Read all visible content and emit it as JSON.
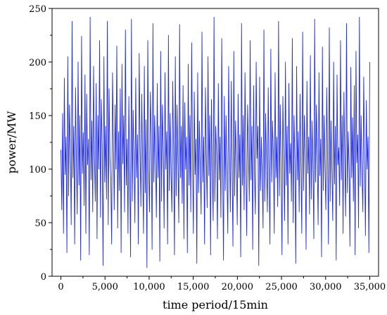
{
  "chart_data": {
    "type": "line",
    "title": "",
    "xlabel": "time period/15min",
    "ylabel": "power/MW",
    "xlim": [
      -1000,
      36000
    ],
    "ylim": [
      0,
      250
    ],
    "x_ticks": [
      0,
      5000,
      10000,
      15000,
      20000,
      25000,
      30000,
      35000
    ],
    "x_tick_labels": [
      "0",
      "5,000",
      "10,000",
      "15,000",
      "20,000",
      "25,000",
      "30,000",
      "35,000"
    ],
    "y_ticks": [
      0,
      50,
      100,
      150,
      200,
      250
    ],
    "y_tick_labels": [
      "0",
      "50",
      "100",
      "150",
      "200",
      "250"
    ],
    "grid": false,
    "legend": "none",
    "series": [
      {
        "color": "#1f2be8",
        "x_start": 0,
        "x_step": 100,
        "values": [
          118,
          62,
          152,
          40,
          185,
          95,
          130,
          22,
          205,
          75,
          160,
          118,
          48,
          238,
          92,
          140,
          30,
          176,
          110,
          58,
          200,
          85,
          150,
          15,
          224,
          96,
          134,
          66,
          188,
          40,
          170,
          104,
          128,
          20,
          242,
          90,
          145,
          60,
          196,
          112,
          70,
          180,
          35,
          150,
          100,
          220,
          55,
          165,
          120,
          10,
          205,
          88,
          140,
          72,
          238,
          48,
          175,
          110,
          92,
          30,
          190,
          128,
          62,
          160,
          100,
          215,
          45,
          135,
          80,
          175,
          22,
          198,
          105,
          150,
          60,
          230,
          85,
          128,
          40,
          168,
          96,
          18,
          240,
          70,
          155,
          112,
          50,
          185,
          92,
          132,
          30,
          208,
          120,
          65,
          170,
          104,
          40,
          196,
          78,
          146,
          8,
          220,
          100,
          60,
          172,
          130,
          25,
          236,
          88,
          150,
          110,
          55,
          180,
          92,
          140,
          14,
          210,
          70,
          160,
          118,
          45,
          190,
          100,
          135,
          30,
          225,
          80,
          152,
          96,
          60,
          182,
          120,
          20,
          205,
          75,
          160,
          108,
          50,
          235,
          92,
          140,
          68,
          178,
          35,
          162,
          100,
          130,
          22,
          198,
          85,
          150,
          60,
          218,
          110,
          40,
          172,
          95,
          128,
          12,
          190,
          78,
          145,
          102,
          58,
          228,
          88,
          130,
          30,
          176,
          112,
          64,
          205,
          94,
          150,
          20,
          165,
          100,
          52,
          242,
          70,
          140,
          115,
          35,
          180,
          90,
          130,
          55,
          222,
          108,
          15,
          168,
          80,
          150,
          96,
          40,
          196,
          120,
          60,
          182,
          100,
          28,
          210,
          75,
          145,
          110,
          48,
          170,
          92,
          132,
          18,
          236,
          85,
          150,
          62,
          190,
          104,
          38,
          160,
          120,
          70,
          220,
          90,
          140,
          25,
          178,
          98,
          58,
          200,
          110,
          140,
          10,
          186,
          80,
          130,
          96,
          45,
          230,
          70,
          152,
          108,
          60,
          176,
          100,
          30,
          212,
          88,
          145,
          115,
          40,
          190,
          92,
          130,
          65,
          238,
          75,
          160,
          100,
          20,
          168,
          110,
          52,
          200,
          85,
          140,
          30,
          180,
          96,
          124,
          70,
          222,
          50,
          150,
          108,
          12,
          196,
          90,
          135,
          60,
          170,
          102,
          40,
          228,
          80,
          150,
          115,
          25,
          182,
          96,
          130,
          58,
          206,
          72,
          145,
          104,
          35,
          240,
          88,
          160,
          110,
          48,
          190,
          94,
          128,
          18,
          214,
          80,
          150,
          100,
          62,
          176,
          112,
          30,
          232,
          70,
          145,
          98,
          52,
          200,
          86,
          140,
          15,
          188,
          104,
          120,
          66,
          220,
          90,
          150,
          40,
          172,
          110,
          56,
          236,
          78,
          135,
          100,
          28,
          195,
          92,
          148,
          70,
          178,
          20,
          210,
          106,
          132,
          45,
          242,
          84,
          150,
          96,
          60,
          186,
          112,
          38,
          164,
          100,
          130,
          22,
          200
        ],
        "note": ""
      }
    ]
  }
}
